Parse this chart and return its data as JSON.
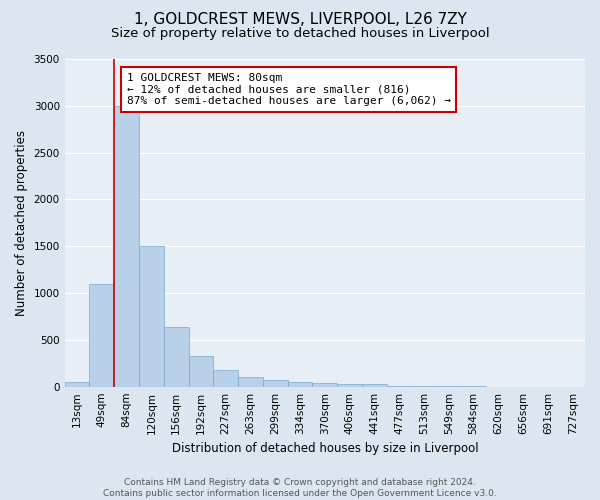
{
  "title_line1": "1, GOLDCREST MEWS, LIVERPOOL, L26 7ZY",
  "title_line2": "Size of property relative to detached houses in Liverpool",
  "xlabel": "Distribution of detached houses by size in Liverpool",
  "ylabel": "Number of detached properties",
  "categories": [
    "13sqm",
    "49sqm",
    "84sqm",
    "120sqm",
    "156sqm",
    "192sqm",
    "227sqm",
    "263sqm",
    "299sqm",
    "334sqm",
    "370sqm",
    "406sqm",
    "441sqm",
    "477sqm",
    "513sqm",
    "549sqm",
    "584sqm",
    "620sqm",
    "656sqm",
    "691sqm",
    "727sqm"
  ],
  "values": [
    50,
    1100,
    3000,
    1500,
    640,
    330,
    180,
    100,
    70,
    55,
    40,
    30,
    25,
    10,
    5,
    3,
    2,
    1,
    1,
    0,
    0
  ],
  "bar_color": "#b8d0e8",
  "bar_edge_color": "#7aaad0",
  "highlight_line_color": "#cc0000",
  "annotation_text": "1 GOLDCREST MEWS: 80sqm\n← 12% of detached houses are smaller (816)\n87% of semi-detached houses are larger (6,062) →",
  "annotation_box_edgecolor": "#cc0000",
  "annotation_box_facecolor": "#ffffff",
  "ylim": [
    0,
    3500
  ],
  "yticks": [
    0,
    500,
    1000,
    1500,
    2000,
    2500,
    3000,
    3500
  ],
  "background_color": "#dce6f0",
  "plot_background_color": "#e8eef5",
  "grid_color": "#ffffff",
  "footer_text": "Contains HM Land Registry data © Crown copyright and database right 2024.\nContains public sector information licensed under the Open Government Licence v3.0.",
  "title_fontsize": 11,
  "subtitle_fontsize": 9.5,
  "axis_label_fontsize": 8.5,
  "tick_fontsize": 7.5,
  "annotation_fontsize": 8,
  "footer_fontsize": 6.5,
  "red_line_x": 1.5
}
